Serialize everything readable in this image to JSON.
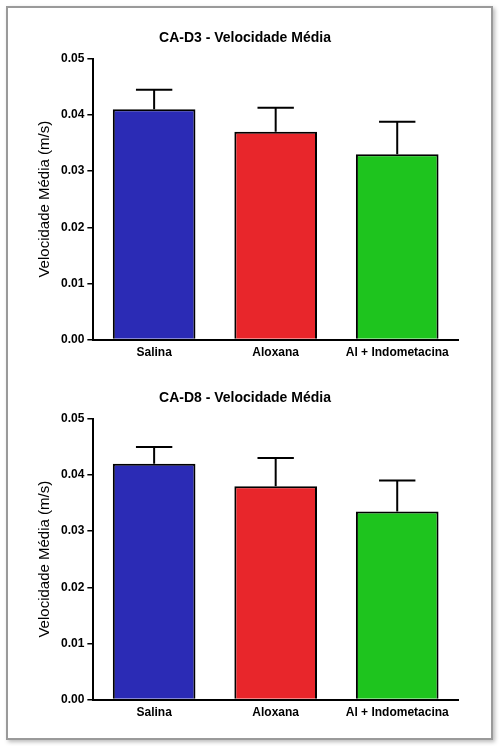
{
  "chart_data": [
    {
      "type": "bar",
      "title": "CA-D3 - Velocidade Média",
      "y_label": "Velocidade Média (m/s)",
      "categories": [
        "Salina",
        "Aloxana",
        "Al + Indometacina"
      ],
      "values": [
        0.041,
        0.037,
        0.033
      ],
      "errors": [
        0.0035,
        0.0043,
        0.0058
      ],
      "colors": [
        "#2b2bb5",
        "#e8262b",
        "#1ec41e"
      ],
      "ylim": [
        0,
        0.05
      ],
      "yticks": [
        {
          "value": 0,
          "label": "0.00"
        },
        0.01,
        0.02,
        0.03,
        0.04,
        0.05
      ],
      "grid": false
    },
    {
      "type": "bar",
      "title": "CA-D8 - Velocidade Média",
      "y_label": "Velocidade Média (m/s)",
      "categories": [
        "Salina",
        "Aloxana",
        "Al + Indometacina"
      ],
      "values": [
        0.042,
        0.038,
        0.0335
      ],
      "errors": [
        0.003,
        0.005,
        0.0055
      ],
      "colors": [
        "#2b2bb5",
        "#e8262b",
        "#1ec41e"
      ],
      "ylim": [
        0,
        0.05
      ],
      "yticks": [
        {
          "value": 0,
          "label": "0.00"
        },
        0.01,
        0.02,
        0.03,
        0.04,
        0.05
      ],
      "grid": false
    }
  ]
}
